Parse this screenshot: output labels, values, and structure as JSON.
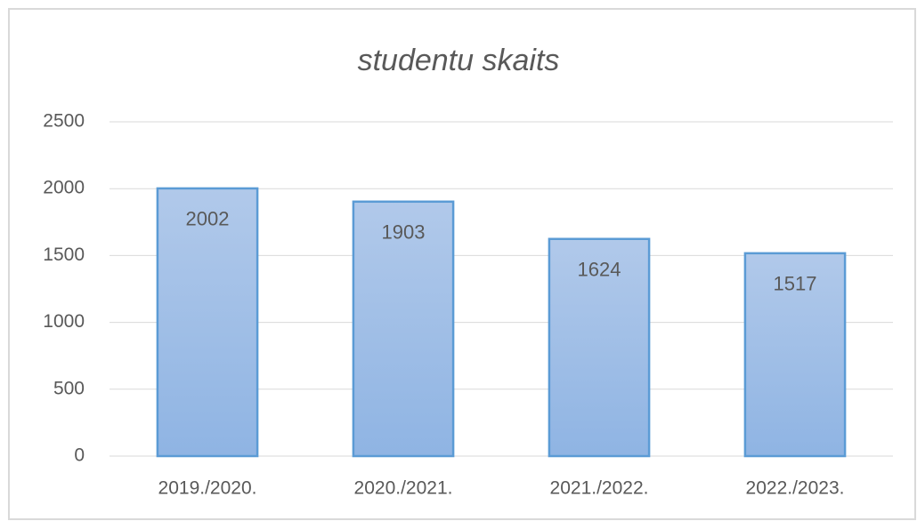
{
  "chart_data": {
    "type": "bar",
    "title": "studentu skaits",
    "categories": [
      "2019./2020.",
      "2020./2021.",
      "2021./2022.",
      "2022./2023."
    ],
    "values": [
      2002,
      1903,
      1624,
      1517
    ],
    "color": "#5b9bd5",
    "ylim": [
      0,
      2500
    ],
    "yticks": [
      0,
      500,
      1000,
      1500,
      2000,
      2500
    ],
    "grid": true
  }
}
